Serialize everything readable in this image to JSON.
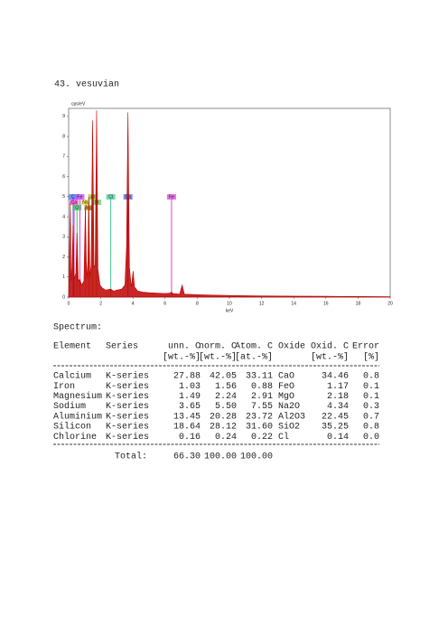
{
  "title": "43. vesuvian",
  "chart_data": {
    "type": "area",
    "ylabel": "cps/eV",
    "xlabel": "keV",
    "color": "#c00000",
    "x": [
      0,
      0.1,
      0.15,
      0.2,
      0.28,
      0.35,
      0.45,
      0.52,
      0.6,
      0.7,
      0.8,
      0.95,
      1.04,
      1.12,
      1.2,
      1.25,
      1.32,
      1.4,
      1.49,
      1.58,
      1.65,
      1.74,
      1.82,
      1.95,
      2.1,
      2.3,
      2.62,
      2.8,
      3.0,
      3.3,
      3.5,
      3.6,
      3.69,
      3.78,
      3.9,
      4.01,
      4.1,
      4.3,
      4.6,
      5,
      5.5,
      6,
      6.3,
      6.4,
      6.5,
      6.9,
      7.06,
      7.2,
      8,
      9,
      10,
      12,
      14,
      16,
      18,
      20
    ],
    "values": [
      0,
      4.7,
      0.8,
      1.4,
      3.6,
      0.9,
      1.2,
      3.2,
      0.8,
      0.9,
      0.6,
      0.8,
      4.5,
      0.9,
      1.8,
      5.0,
      1.0,
      1.6,
      8.8,
      1.5,
      1.6,
      9.3,
      1.4,
      0.6,
      0.45,
      0.35,
      0.4,
      0.3,
      0.35,
      0.4,
      0.6,
      2.5,
      9.2,
      1.5,
      0.5,
      1.3,
      0.5,
      0.3,
      0.25,
      0.22,
      0.2,
      0.18,
      0.2,
      0.25,
      0.18,
      0.15,
      0.6,
      0.15,
      0.12,
      0.1,
      0.08,
      0.06,
      0.05,
      0.04,
      0.03,
      0.02
    ],
    "xlim": [
      0,
      20
    ],
    "ylim": [
      0,
      9.4
    ],
    "xticks": [
      0,
      2,
      4,
      6,
      8,
      10,
      12,
      14,
      16,
      18,
      20
    ],
    "yticks": [
      0,
      1,
      2,
      3,
      4,
      5,
      6,
      7,
      8,
      9
    ],
    "markers": [
      {
        "label": "C",
        "x": 0.28,
        "color": "#4a6cff"
      },
      {
        "label": "Ca",
        "x": 0.34,
        "color": "#ff44cc"
      },
      {
        "label": "O",
        "x": 0.52,
        "color": "#33cc66"
      },
      {
        "label": "Fe",
        "x": 0.7,
        "color": "#cc44ff"
      },
      {
        "label": "Na",
        "x": 1.04,
        "color": "#dddd33"
      },
      {
        "label": "Mg",
        "x": 1.25,
        "color": "#cc9933"
      },
      {
        "label": "Al",
        "x": 1.49,
        "color": "#99cc33"
      },
      {
        "label": "Si",
        "x": 1.74,
        "color": "#66cc66"
      },
      {
        "label": "Cl",
        "x": 2.62,
        "color": "#44cc99"
      },
      {
        "label": "Ca",
        "x": 3.69,
        "color": "#4a6cff"
      },
      {
        "label": "Fe",
        "x": 6.4,
        "color": "#dd44dd"
      }
    ]
  },
  "spectrum_label": "Spectrum:",
  "table": {
    "header": [
      "Element",
      "Series",
      "unn. C",
      "norm. C",
      "Atom. C",
      "Oxide",
      "Oxid. C",
      "Error"
    ],
    "units": [
      "",
      "",
      "[wt.-%]",
      "[wt.-%]",
      "[at.-%]",
      "",
      "[wt.-%]",
      "[%]"
    ],
    "rows": [
      [
        "Calcium",
        "K-series",
        "27.88",
        "42.05",
        "33.11",
        "CaO",
        "34.46",
        "0.8"
      ],
      [
        "Iron",
        "K-series",
        "1.03",
        "1.56",
        "0.88",
        "FeO",
        "1.17",
        "0.1"
      ],
      [
        "Magnesium",
        "K-series",
        "1.49",
        "2.24",
        "2.91",
        "MgO",
        "2.18",
        "0.1"
      ],
      [
        "Sodium",
        "K-series",
        "3.65",
        "5.50",
        "7.55",
        "Na2O",
        "4.34",
        "0.3"
      ],
      [
        "Aluminium",
        "K-series",
        "13.45",
        "20.28",
        "23.72",
        "Al2O3",
        "22.45",
        "0.7"
      ],
      [
        "Silicon",
        "K-series",
        "18.64",
        "28.12",
        "31.60",
        "SiO2",
        "35.25",
        "0.8"
      ],
      [
        "Chlorine",
        "K-series",
        "0.16",
        "0.24",
        "0.22",
        "Cl",
        "0.14",
        "0.0"
      ]
    ],
    "total": {
      "label": "Total:",
      "unn": "66.30",
      "norm": "100.00",
      "atom": "100.00"
    }
  }
}
